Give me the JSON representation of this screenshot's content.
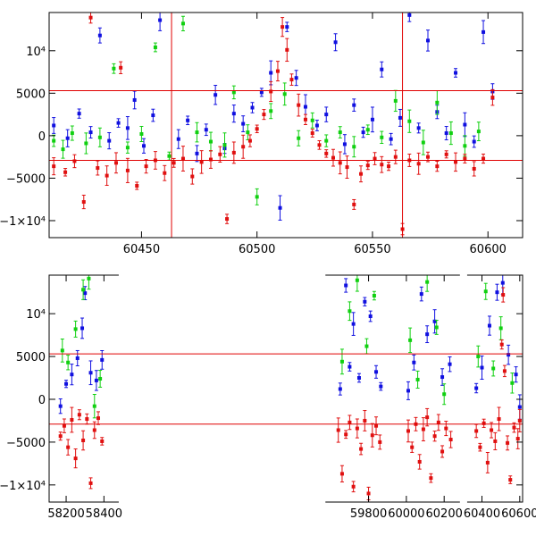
{
  "chart_data": [
    {
      "type": "scatter",
      "title": "",
      "xlabel": "",
      "ylabel": "",
      "xlim": [
        60410,
        60615
      ],
      "ylim": [
        -12000,
        14500
      ],
      "xticks": [
        60450,
        60500,
        60550,
        60600
      ],
      "xtick_labels": [
        "60450",
        "60500",
        "60550",
        "60600"
      ],
      "yticks": [
        -10000,
        -5000,
        0,
        5000,
        10000
      ],
      "ytick_labels": [
        "−1×10⁴",
        "−5000",
        "0",
        "5000",
        "10⁴"
      ],
      "hlines": [
        5300,
        -2900
      ],
      "vlines": [
        60463,
        60563
      ],
      "reference_line_color": "#e00000",
      "series": [
        {
          "color": "#1010e0",
          "data": [
            [
              60412,
              1200
            ],
            [
              60418,
              -300
            ],
            [
              60423,
              2600
            ],
            [
              60428,
              400
            ],
            [
              60432,
              11800
            ],
            [
              60436,
              -600
            ],
            [
              60440,
              1500
            ],
            [
              60444,
              900
            ],
            [
              60447,
              4200
            ],
            [
              60451,
              -1200
            ],
            [
              60455,
              2400
            ],
            [
              60458,
              13600
            ],
            [
              60466,
              -400
            ],
            [
              60470,
              1800
            ],
            [
              60474,
              -2100
            ],
            [
              60478,
              700
            ],
            [
              60482,
              4800
            ],
            [
              60486,
              -1500
            ],
            [
              60490,
              2600
            ],
            [
              60494,
              1400
            ],
            [
              60498,
              3300
            ],
            [
              60502,
              5100
            ],
            [
              60506,
              7400
            ],
            [
              60510,
              -8500
            ],
            [
              60513,
              12800
            ],
            [
              60517,
              6800
            ],
            [
              60521,
              3400
            ],
            [
              60526,
              1200
            ],
            [
              60530,
              2500
            ],
            [
              60534,
              11000
            ],
            [
              60538,
              -1000
            ],
            [
              60542,
              3600
            ],
            [
              60546,
              400
            ],
            [
              60550,
              1900
            ],
            [
              60554,
              7800
            ],
            [
              60558,
              -400
            ],
            [
              60562,
              2100
            ],
            [
              60566,
              14200
            ],
            [
              60570,
              900
            ],
            [
              60574,
              11200
            ],
            [
              60578,
              2800
            ],
            [
              60582,
              300
            ],
            [
              60586,
              7400
            ],
            [
              60590,
              1300
            ],
            [
              60594,
              -700
            ],
            [
              60598,
              12200
            ],
            [
              60602,
              5200
            ]
          ]
        },
        {
          "color": "#10d010",
          "data": [
            [
              60412,
              -600
            ],
            [
              60416,
              -1600
            ],
            [
              60420,
              300
            ],
            [
              60426,
              -900
            ],
            [
              60432,
              -200
            ],
            [
              60438,
              7900
            ],
            [
              60444,
              -1400
            ],
            [
              60450,
              200
            ],
            [
              60456,
              10400
            ],
            [
              60462,
              -2400
            ],
            [
              60468,
              13200
            ],
            [
              60474,
              400
            ],
            [
              60480,
              -700
            ],
            [
              60486,
              -1100
            ],
            [
              60490,
              5100
            ],
            [
              60496,
              400
            ],
            [
              60500,
              -7200
            ],
            [
              60506,
              2900
            ],
            [
              60512,
              4900
            ],
            [
              60518,
              -300
            ],
            [
              60524,
              1800
            ],
            [
              60530,
              -600
            ],
            [
              60536,
              400
            ],
            [
              60542,
              -1300
            ],
            [
              60548,
              700
            ],
            [
              60554,
              -200
            ],
            [
              60560,
              4100
            ],
            [
              60566,
              1700
            ],
            [
              60572,
              -800
            ],
            [
              60578,
              3900
            ],
            [
              60584,
              300
            ],
            [
              60590,
              -1200
            ],
            [
              60596,
              500
            ]
          ]
        },
        {
          "color": "#e01010",
          "data": [
            [
              60412,
              -3600
            ],
            [
              60417,
              -4300
            ],
            [
              60421,
              -3000
            ],
            [
              60425,
              -7800
            ],
            [
              60428,
              13900
            ],
            [
              60431,
              -3800
            ],
            [
              60435,
              -4700
            ],
            [
              60439,
              -3200
            ],
            [
              60441,
              8000
            ],
            [
              60444,
              -4100
            ],
            [
              60448,
              -5900
            ],
            [
              60452,
              -3600
            ],
            [
              60456,
              -2900
            ],
            [
              60460,
              -4400
            ],
            [
              60464,
              -3200
            ],
            [
              60468,
              -2700
            ],
            [
              60472,
              -4800
            ],
            [
              60476,
              -3100
            ],
            [
              60480,
              -2800
            ],
            [
              60484,
              -2200
            ],
            [
              60487,
              -9800
            ],
            [
              60490,
              -2000
            ],
            [
              60494,
              -1300
            ],
            [
              60497,
              -600
            ],
            [
              60500,
              800
            ],
            [
              60503,
              2500
            ],
            [
              60506,
              5200
            ],
            [
              60509,
              7600
            ],
            [
              60511,
              12800
            ],
            [
              60513,
              10100
            ],
            [
              60515,
              6600
            ],
            [
              60518,
              3600
            ],
            [
              60521,
              1900
            ],
            [
              60524,
              300
            ],
            [
              60527,
              -1100
            ],
            [
              60530,
              -2100
            ],
            [
              60533,
              -2600
            ],
            [
              60536,
              -3200
            ],
            [
              60539,
              -3700
            ],
            [
              60542,
              -8100
            ],
            [
              60545,
              -4500
            ],
            [
              60548,
              -3500
            ],
            [
              60551,
              -2700
            ],
            [
              60554,
              -3400
            ],
            [
              60557,
              -3600
            ],
            [
              60560,
              -2500
            ],
            [
              60563,
              -11000
            ],
            [
              60566,
              -2900
            ],
            [
              60570,
              -3300
            ],
            [
              60574,
              -2500
            ],
            [
              60578,
              -3600
            ],
            [
              60582,
              -2200
            ],
            [
              60586,
              -3100
            ],
            [
              60590,
              -2700
            ],
            [
              60594,
              -3900
            ],
            [
              60598,
              -2700
            ],
            [
              60602,
              4500
            ]
          ]
        }
      ]
    },
    {
      "type": "scatter",
      "title": "",
      "xlabel": "",
      "ylabel": "",
      "xlim": [
        58110,
        60615
      ],
      "ylim": [
        -12000,
        14500
      ],
      "xticks": [
        58200,
        58400,
        59800,
        60000,
        60200,
        60400,
        60600
      ],
      "xtick_labels": [
        "58200",
        "58400",
        "59800",
        "60000",
        "60200",
        "60400",
        "60600"
      ],
      "x_axis_breaks": [
        [
          58450,
          59600
        ],
        [
          60255,
          60350
        ]
      ],
      "yticks": [
        -10000,
        -5000,
        0,
        5000,
        10000
      ],
      "ytick_labels": [
        "−1×10⁴",
        "−5000",
        "0",
        "5000",
        "10⁴"
      ],
      "hlines": [
        5300,
        -2900
      ],
      "reference_line_color": "#e00000",
      "series": [
        {
          "color": "#1010e0",
          "data": [
            [
              58170,
              -800
            ],
            [
              58200,
              1800
            ],
            [
              58230,
              2900
            ],
            [
              58260,
              4800
            ],
            [
              58285,
              8300
            ],
            [
              58300,
              12400
            ],
            [
              58330,
              3100
            ],
            [
              58360,
              2200
            ],
            [
              58390,
              4600
            ],
            [
              59650,
              1200
            ],
            [
              59680,
              13300
            ],
            [
              59700,
              3800
            ],
            [
              59720,
              8800
            ],
            [
              59750,
              2500
            ],
            [
              59780,
              11400
            ],
            [
              59810,
              9700
            ],
            [
              59840,
              3200
            ],
            [
              59865,
              1500
            ],
            [
              60010,
              1000
            ],
            [
              60040,
              4300
            ],
            [
              60080,
              12300
            ],
            [
              60110,
              7600
            ],
            [
              60150,
              9100
            ],
            [
              60190,
              2600
            ],
            [
              60230,
              4100
            ],
            [
              60370,
              1300
            ],
            [
              60400,
              3700
            ],
            [
              60440,
              8600
            ],
            [
              60480,
              12500
            ],
            [
              60510,
              13600
            ],
            [
              60540,
              5200
            ],
            [
              60580,
              2900
            ],
            [
              60600,
              -900
            ]
          ]
        },
        {
          "color": "#10d010",
          "data": [
            [
              58180,
              5700
            ],
            [
              58210,
              4300
            ],
            [
              58250,
              8200
            ],
            [
              58290,
              12800
            ],
            [
              58320,
              14100
            ],
            [
              58350,
              -800
            ],
            [
              58380,
              2400
            ],
            [
              59660,
              4400
            ],
            [
              59700,
              10300
            ],
            [
              59740,
              13900
            ],
            [
              59790,
              6200
            ],
            [
              59830,
              12100
            ],
            [
              60020,
              6900
            ],
            [
              60060,
              2300
            ],
            [
              60110,
              13700
            ],
            [
              60160,
              8400
            ],
            [
              60200,
              600
            ],
            [
              60380,
              5000
            ],
            [
              60420,
              12600
            ],
            [
              60460,
              3600
            ],
            [
              60500,
              8300
            ],
            [
              60560,
              1900
            ]
          ]
        },
        {
          "color": "#e01010",
          "data": [
            [
              58170,
              -4300
            ],
            [
              58190,
              -3100
            ],
            [
              58210,
              -5600
            ],
            [
              58230,
              -2400
            ],
            [
              58250,
              -6900
            ],
            [
              58270,
              -1800
            ],
            [
              58290,
              -4800
            ],
            [
              58310,
              -2300
            ],
            [
              58330,
              -9800
            ],
            [
              58350,
              -3600
            ],
            [
              58370,
              -2200
            ],
            [
              58390,
              -4900
            ],
            [
              59640,
              -3600
            ],
            [
              59660,
              -8700
            ],
            [
              59680,
              -4100
            ],
            [
              59700,
              -2700
            ],
            [
              59720,
              -10200
            ],
            [
              59740,
              -3400
            ],
            [
              59760,
              -5800
            ],
            [
              59780,
              -2500
            ],
            [
              59800,
              -11000
            ],
            [
              59820,
              -4200
            ],
            [
              59840,
              -3100
            ],
            [
              59860,
              -5000
            ],
            [
              60010,
              -3700
            ],
            [
              60030,
              -5600
            ],
            [
              60050,
              -2900
            ],
            [
              60070,
              -7300
            ],
            [
              60090,
              -3500
            ],
            [
              60110,
              -2100
            ],
            [
              60130,
              -9200
            ],
            [
              60150,
              -4300
            ],
            [
              60170,
              -2700
            ],
            [
              60190,
              -6100
            ],
            [
              60210,
              -3400
            ],
            [
              60235,
              -4700
            ],
            [
              60370,
              -3700
            ],
            [
              60390,
              -5600
            ],
            [
              60410,
              -2800
            ],
            [
              60430,
              -7400
            ],
            [
              60450,
              -3600
            ],
            [
              60470,
              -4900
            ],
            [
              60490,
              -2300
            ],
            [
              60505,
              6400
            ],
            [
              60512,
              12200
            ],
            [
              60520,
              3300
            ],
            [
              60535,
              -5100
            ],
            [
              60550,
              -9400
            ],
            [
              60570,
              -3300
            ],
            [
              60590,
              -4600
            ],
            [
              60600,
              -2500
            ]
          ]
        }
      ]
    }
  ]
}
